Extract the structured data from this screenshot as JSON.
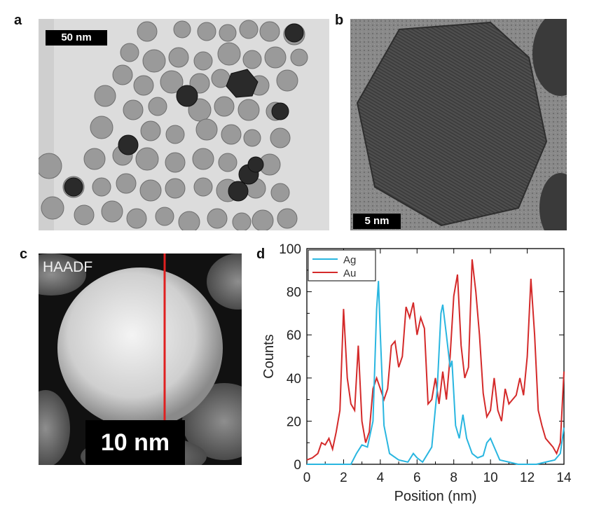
{
  "figure": {
    "panels": [
      {
        "letter": "a",
        "scale_bar": "50 nm"
      },
      {
        "letter": "b",
        "scale_bar": "5 nm"
      },
      {
        "letter": "c",
        "mode_label": "HAADF",
        "scale_bar": "10 nm",
        "line_color": "#e02020"
      },
      {
        "letter": "d"
      }
    ]
  },
  "chart_data": {
    "type": "line",
    "xlabel": "Position (nm)",
    "ylabel": "Counts",
    "xlim": [
      0,
      14
    ],
    "ylim": [
      0,
      100
    ],
    "x_ticks": [
      "0",
      "2",
      "4",
      "6",
      "8",
      "10",
      "12",
      "14"
    ],
    "y_ticks": [
      "0",
      "20",
      "40",
      "60",
      "80",
      "100"
    ],
    "grid": false,
    "legend": "top-left",
    "series": [
      {
        "name": "Ag",
        "color": "#29b6e0",
        "points": [
          [
            0,
            0
          ],
          [
            0.5,
            0
          ],
          [
            1,
            0
          ],
          [
            1.5,
            0
          ],
          [
            2,
            0
          ],
          [
            2.4,
            0
          ],
          [
            2.7,
            5
          ],
          [
            3,
            9
          ],
          [
            3.3,
            8
          ],
          [
            3.6,
            20
          ],
          [
            3.8,
            72
          ],
          [
            3.9,
            85
          ],
          [
            4.0,
            60
          ],
          [
            4.2,
            18
          ],
          [
            4.5,
            5
          ],
          [
            5,
            2
          ],
          [
            5.5,
            1
          ],
          [
            5.8,
            5
          ],
          [
            6.0,
            3
          ],
          [
            6.3,
            1
          ],
          [
            6.8,
            8
          ],
          [
            7.1,
            35
          ],
          [
            7.3,
            70
          ],
          [
            7.4,
            74
          ],
          [
            7.6,
            60
          ],
          [
            7.8,
            45
          ],
          [
            7.9,
            48
          ],
          [
            8.1,
            18
          ],
          [
            8.3,
            12
          ],
          [
            8.5,
            23
          ],
          [
            8.7,
            12
          ],
          [
            9,
            5
          ],
          [
            9.3,
            3
          ],
          [
            9.6,
            4
          ],
          [
            9.8,
            10
          ],
          [
            10,
            12
          ],
          [
            10.2,
            8
          ],
          [
            10.5,
            2
          ],
          [
            11,
            1
          ],
          [
            11.5,
            0
          ],
          [
            12,
            0
          ],
          [
            12.5,
            0
          ],
          [
            13,
            1
          ],
          [
            13.5,
            2
          ],
          [
            13.8,
            5
          ],
          [
            14,
            17
          ]
        ]
      },
      {
        "name": "Au",
        "color": "#d42a2a",
        "points": [
          [
            0,
            2
          ],
          [
            0.3,
            3
          ],
          [
            0.6,
            5
          ],
          [
            0.8,
            10
          ],
          [
            1,
            9
          ],
          [
            1.2,
            12
          ],
          [
            1.4,
            7
          ],
          [
            1.6,
            15
          ],
          [
            1.8,
            25
          ],
          [
            2,
            72
          ],
          [
            2.2,
            40
          ],
          [
            2.4,
            28
          ],
          [
            2.6,
            25
          ],
          [
            2.8,
            55
          ],
          [
            3,
            20
          ],
          [
            3.2,
            10
          ],
          [
            3.4,
            15
          ],
          [
            3.6,
            35
          ],
          [
            3.8,
            40
          ],
          [
            4,
            35
          ],
          [
            4.2,
            30
          ],
          [
            4.4,
            35
          ],
          [
            4.6,
            55
          ],
          [
            4.8,
            57
          ],
          [
            5,
            45
          ],
          [
            5.2,
            50
          ],
          [
            5.4,
            73
          ],
          [
            5.6,
            68
          ],
          [
            5.8,
            75
          ],
          [
            6,
            60
          ],
          [
            6.2,
            68
          ],
          [
            6.4,
            63
          ],
          [
            6.6,
            28
          ],
          [
            6.8,
            30
          ],
          [
            7,
            40
          ],
          [
            7.2,
            28
          ],
          [
            7.4,
            43
          ],
          [
            7.6,
            30
          ],
          [
            7.8,
            50
          ],
          [
            8,
            78
          ],
          [
            8.2,
            88
          ],
          [
            8.4,
            55
          ],
          [
            8.6,
            40
          ],
          [
            8.8,
            45
          ],
          [
            9,
            95
          ],
          [
            9.2,
            80
          ],
          [
            9.4,
            60
          ],
          [
            9.6,
            33
          ],
          [
            9.8,
            22
          ],
          [
            10,
            25
          ],
          [
            10.2,
            40
          ],
          [
            10.4,
            25
          ],
          [
            10.6,
            20
          ],
          [
            10.8,
            35
          ],
          [
            11,
            28
          ],
          [
            11.2,
            30
          ],
          [
            11.4,
            32
          ],
          [
            11.6,
            40
          ],
          [
            11.8,
            32
          ],
          [
            12,
            50
          ],
          [
            12.2,
            86
          ],
          [
            12.4,
            60
          ],
          [
            12.6,
            25
          ],
          [
            12.8,
            18
          ],
          [
            13,
            12
          ],
          [
            13.2,
            10
          ],
          [
            13.4,
            8
          ],
          [
            13.6,
            5
          ],
          [
            13.8,
            10
          ],
          [
            14,
            43
          ]
        ]
      }
    ]
  }
}
